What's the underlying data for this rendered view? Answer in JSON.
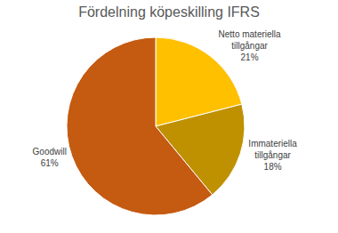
{
  "chart_data": {
    "type": "pie",
    "title": "Fördelning köpeskilling IFRS",
    "categories": [
      "Netto materiella tillgångar",
      "Immateriella tillgångar",
      "Goodwill"
    ],
    "values": [
      21,
      18,
      61
    ],
    "value_labels": [
      "21%",
      "18%",
      "61%"
    ],
    "colors": [
      "#ffc000",
      "#bf9000",
      "#c55a11"
    ],
    "data_labels": true
  }
}
